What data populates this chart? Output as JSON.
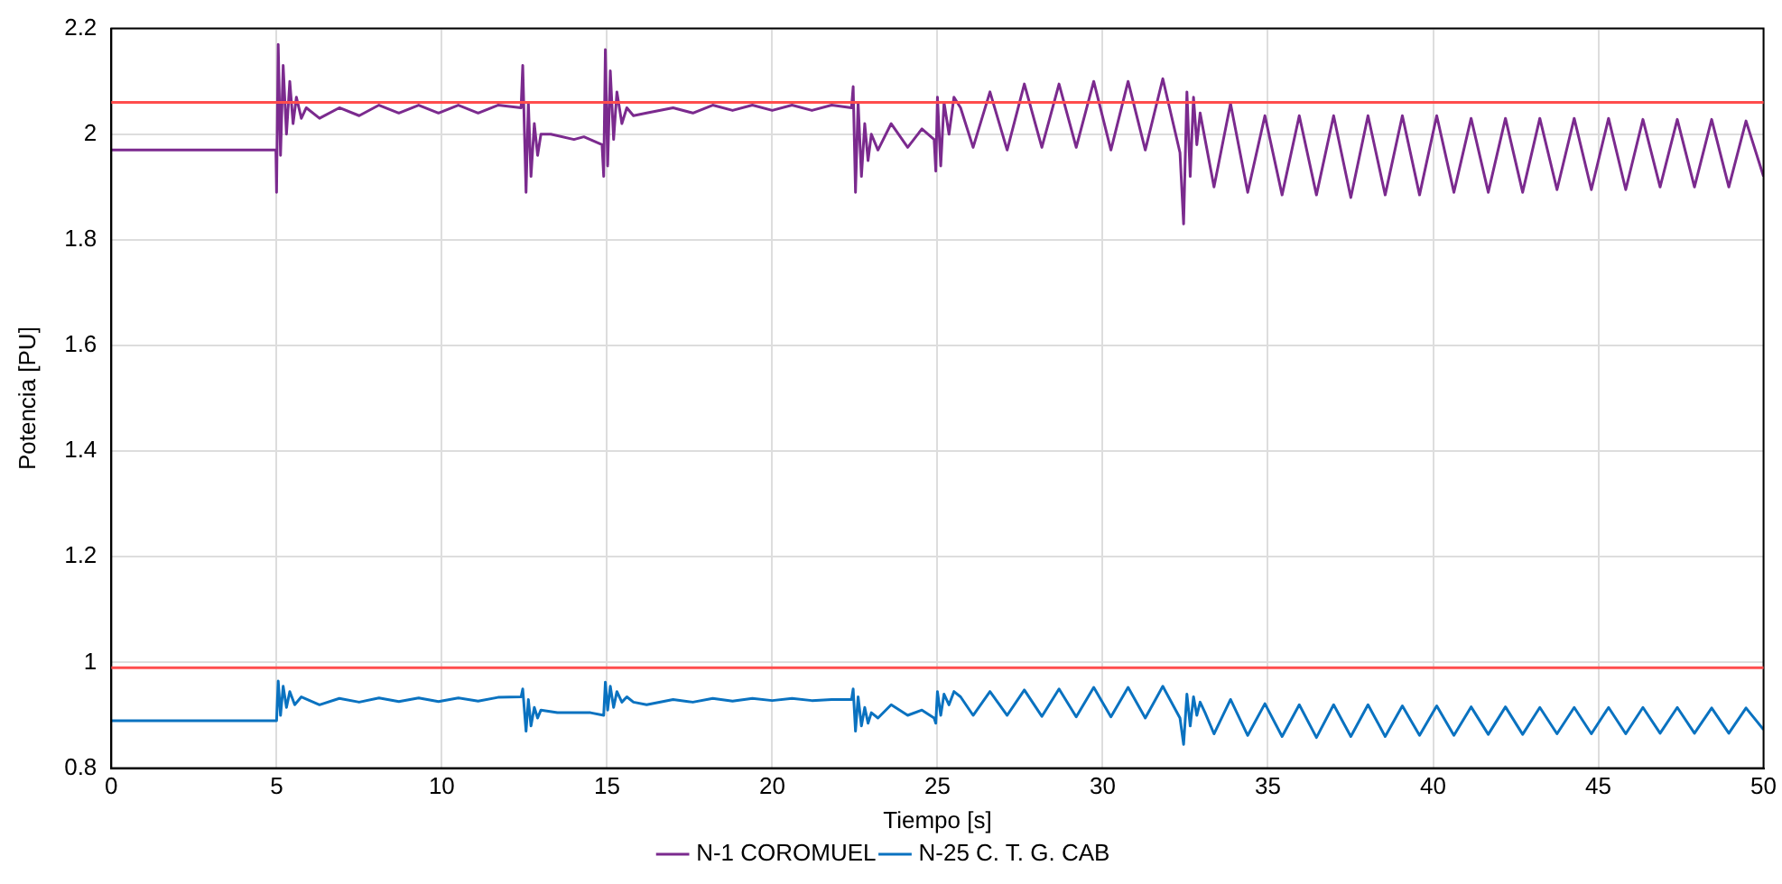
{
  "chart_data": {
    "type": "line",
    "xlabel": "Tiempo [s]",
    "ylabel": "Potencia [PU]",
    "xlim": [
      0,
      50
    ],
    "ylim": [
      0.8,
      2.2
    ],
    "xticks": [
      0,
      5,
      10,
      15,
      20,
      25,
      30,
      35,
      40,
      45,
      50
    ],
    "yticks": [
      0.8,
      1,
      1.2,
      1.4,
      1.6,
      1.8,
      2,
      2.2
    ],
    "grid": true,
    "legend": "bottom",
    "line_style": "solid",
    "ref_lines": [
      {
        "axis": "y",
        "value": 2.06,
        "color": "#ff4d4d"
      },
      {
        "axis": "y",
        "value": 0.99,
        "color": "#ff4d4d"
      }
    ],
    "series": [
      {
        "name": "N-1 COROMUEL",
        "color": "#7b2a8e",
        "x": [
          0,
          4.98,
          5.0,
          5.05,
          5.12,
          5.2,
          5.3,
          5.4,
          5.5,
          5.6,
          5.75,
          5.9,
          6.3,
          6.9,
          7.5,
          8.1,
          8.7,
          9.3,
          9.9,
          10.5,
          11.1,
          11.7,
          12.4,
          12.45,
          12.55,
          12.62,
          12.7,
          12.8,
          12.9,
          13.0,
          13.3,
          14.0,
          14.3,
          14.85,
          14.9,
          14.95,
          15.02,
          15.1,
          15.2,
          15.3,
          15.45,
          15.6,
          15.8,
          16.2,
          17.0,
          17.6,
          18.2,
          18.8,
          19.4,
          20.0,
          20.6,
          21.2,
          21.8,
          22.4,
          22.45,
          22.52,
          22.6,
          22.7,
          22.8,
          22.9,
          23.0,
          23.2,
          23.6,
          24.1,
          24.53,
          24.9,
          24.95,
          25.0,
          25.1,
          25.2,
          25.35,
          25.5,
          25.7,
          26.08,
          26.59,
          27.11,
          27.63,
          28.16,
          28.68,
          29.2,
          29.73,
          30.25,
          30.77,
          31.29,
          31.82,
          32.34,
          32.45,
          32.55,
          32.65,
          32.75,
          32.85,
          32.95,
          33.1,
          33.37,
          33.87,
          34.39,
          34.91,
          35.43,
          35.95,
          36.47,
          36.99,
          37.51,
          38.03,
          38.55,
          39.07,
          39.59,
          40.11,
          40.63,
          41.15,
          41.67,
          42.19,
          42.71,
          43.23,
          43.75,
          44.27,
          44.79,
          45.31,
          45.83,
          46.35,
          46.87,
          47.39,
          47.91,
          48.43,
          48.95,
          49.47,
          50
        ],
        "values": [
          1.97,
          1.97,
          1.89,
          2.17,
          1.96,
          2.13,
          2.0,
          2.1,
          2.02,
          2.07,
          2.03,
          2.05,
          2.03,
          2.05,
          2.035,
          2.055,
          2.04,
          2.055,
          2.04,
          2.055,
          2.04,
          2.055,
          2.05,
          2.13,
          1.89,
          2.06,
          1.92,
          2.02,
          1.96,
          2.0,
          2.0,
          1.99,
          1.995,
          1.98,
          1.92,
          2.16,
          1.94,
          2.12,
          1.99,
          2.08,
          2.02,
          2.05,
          2.035,
          2.04,
          2.05,
          2.04,
          2.055,
          2.045,
          2.055,
          2.045,
          2.055,
          2.045,
          2.055,
          2.05,
          2.09,
          1.89,
          2.06,
          1.92,
          2.02,
          1.95,
          2.0,
          1.97,
          2.02,
          1.975,
          2.01,
          1.99,
          1.93,
          2.07,
          1.94,
          2.06,
          2.0,
          2.07,
          2.05,
          1.975,
          2.08,
          1.97,
          2.095,
          1.975,
          2.095,
          1.975,
          2.1,
          1.97,
          2.1,
          1.97,
          2.105,
          1.965,
          1.83,
          2.08,
          1.92,
          2.07,
          1.98,
          2.04,
          1.99,
          1.9,
          2.058,
          1.89,
          2.035,
          1.885,
          2.035,
          1.885,
          2.035,
          1.88,
          2.035,
          1.885,
          2.035,
          1.885,
          2.035,
          1.89,
          2.03,
          1.89,
          2.03,
          1.89,
          2.03,
          1.895,
          2.03,
          1.895,
          2.03,
          1.895,
          2.028,
          1.9,
          2.028,
          1.9,
          2.028,
          1.9,
          2.025,
          1.92
        ]
      },
      {
        "name": "N-25 C. T. G. CAB",
        "color": "#0a72c0",
        "x": [
          0,
          4.98,
          5.0,
          5.05,
          5.12,
          5.2,
          5.3,
          5.4,
          5.55,
          5.75,
          6.3,
          6.9,
          7.5,
          8.1,
          8.7,
          9.3,
          9.9,
          10.5,
          11.1,
          11.7,
          12.4,
          12.45,
          12.55,
          12.62,
          12.7,
          12.8,
          12.9,
          13.0,
          13.5,
          14.5,
          14.9,
          14.95,
          15.02,
          15.1,
          15.2,
          15.3,
          15.45,
          15.6,
          15.8,
          16.2,
          17.0,
          17.6,
          18.2,
          18.8,
          19.4,
          20.0,
          20.6,
          21.2,
          21.8,
          22.4,
          22.45,
          22.52,
          22.6,
          22.7,
          22.8,
          22.9,
          23.0,
          23.2,
          23.6,
          24.1,
          24.53,
          24.9,
          24.95,
          25.0,
          25.1,
          25.2,
          25.35,
          25.5,
          25.7,
          26.08,
          26.59,
          27.11,
          27.63,
          28.16,
          28.68,
          29.2,
          29.73,
          30.25,
          30.77,
          31.29,
          31.82,
          32.34,
          32.45,
          32.55,
          32.65,
          32.75,
          32.85,
          32.95,
          33.1,
          33.37,
          33.87,
          34.39,
          34.91,
          35.43,
          35.95,
          36.47,
          36.99,
          37.51,
          38.03,
          38.55,
          39.07,
          39.59,
          40.11,
          40.63,
          41.15,
          41.67,
          42.19,
          42.71,
          43.23,
          43.75,
          44.27,
          44.79,
          45.31,
          45.83,
          46.35,
          46.87,
          47.39,
          47.91,
          48.43,
          48.95,
          49.47,
          50
        ],
        "values": [
          0.89,
          0.89,
          0.89,
          0.965,
          0.9,
          0.955,
          0.915,
          0.945,
          0.92,
          0.935,
          0.92,
          0.932,
          0.925,
          0.933,
          0.926,
          0.933,
          0.926,
          0.933,
          0.927,
          0.934,
          0.935,
          0.95,
          0.87,
          0.93,
          0.88,
          0.915,
          0.895,
          0.91,
          0.905,
          0.905,
          0.9,
          0.963,
          0.91,
          0.955,
          0.915,
          0.945,
          0.925,
          0.935,
          0.925,
          0.92,
          0.93,
          0.925,
          0.932,
          0.927,
          0.932,
          0.928,
          0.932,
          0.928,
          0.93,
          0.93,
          0.95,
          0.87,
          0.935,
          0.88,
          0.915,
          0.885,
          0.905,
          0.895,
          0.92,
          0.9,
          0.91,
          0.895,
          0.885,
          0.945,
          0.9,
          0.94,
          0.92,
          0.945,
          0.935,
          0.9,
          0.945,
          0.9,
          0.948,
          0.898,
          0.95,
          0.897,
          0.953,
          0.897,
          0.953,
          0.895,
          0.955,
          0.895,
          0.845,
          0.94,
          0.88,
          0.935,
          0.9,
          0.925,
          0.905,
          0.865,
          0.93,
          0.862,
          0.922,
          0.86,
          0.92,
          0.858,
          0.92,
          0.86,
          0.92,
          0.86,
          0.918,
          0.862,
          0.918,
          0.862,
          0.916,
          0.864,
          0.916,
          0.864,
          0.915,
          0.865,
          0.915,
          0.865,
          0.915,
          0.865,
          0.915,
          0.866,
          0.915,
          0.866,
          0.914,
          0.866,
          0.914,
          0.873
        ]
      }
    ]
  }
}
